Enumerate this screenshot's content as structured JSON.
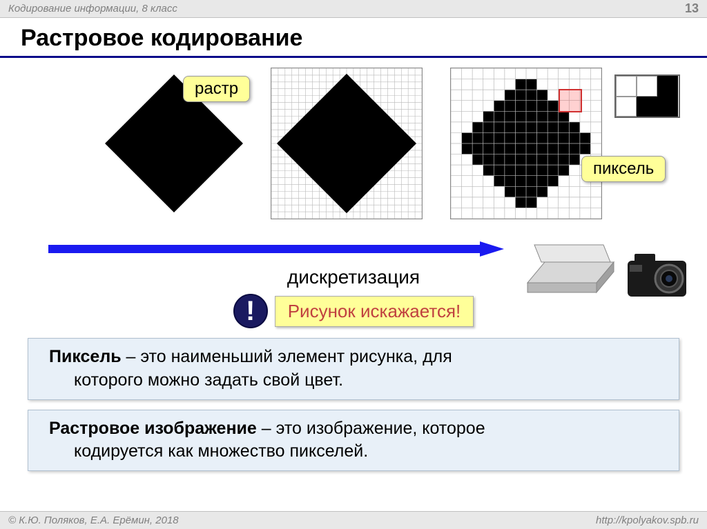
{
  "header": {
    "course": "Кодирование информации, 8 класс",
    "page": "13"
  },
  "title": "Растровое кодирование",
  "callouts": {
    "raster": "растр",
    "pixel": "пиксель"
  },
  "arrow": {
    "label": "дискретизация",
    "color": "#1a1af0"
  },
  "warning": {
    "icon": "!",
    "text": "Рисунок искажается!"
  },
  "definitions": [
    {
      "term": "Пиксель",
      "rest_first": " – это наименьший элемент рисунка, для",
      "body": "которого можно задать свой цвет."
    },
    {
      "term": "Растровое изображение",
      "rest_first": " – это изображение, которое",
      "body": "кодируется как множество пикселей."
    }
  ],
  "footer": {
    "copyright": "© К.Ю. Поляков, Е.А. Ерёмин, 2018",
    "url": "http://kpolyakov.spb.ru"
  },
  "grids": {
    "medium": {
      "size": 22,
      "type": "diamond-fill"
    },
    "coarse": {
      "size": 14,
      "type": "diamond-pixelated",
      "highlight_cells": [
        [
          10,
          2
        ],
        [
          11,
          2
        ],
        [
          10,
          3
        ],
        [
          11,
          3
        ]
      ]
    }
  },
  "colors": {
    "title_underline": "#0a0a8a",
    "callout_bg": "#ffff99",
    "warn_bg": "#ffff99",
    "warn_text": "#c04040",
    "warn_icon_bg": "#1a1a60",
    "def_bg": "#e8f0f8",
    "header_bg": "#e8e8e8",
    "grid_line": "#b8b8b8",
    "highlight_stroke": "#d03030"
  }
}
